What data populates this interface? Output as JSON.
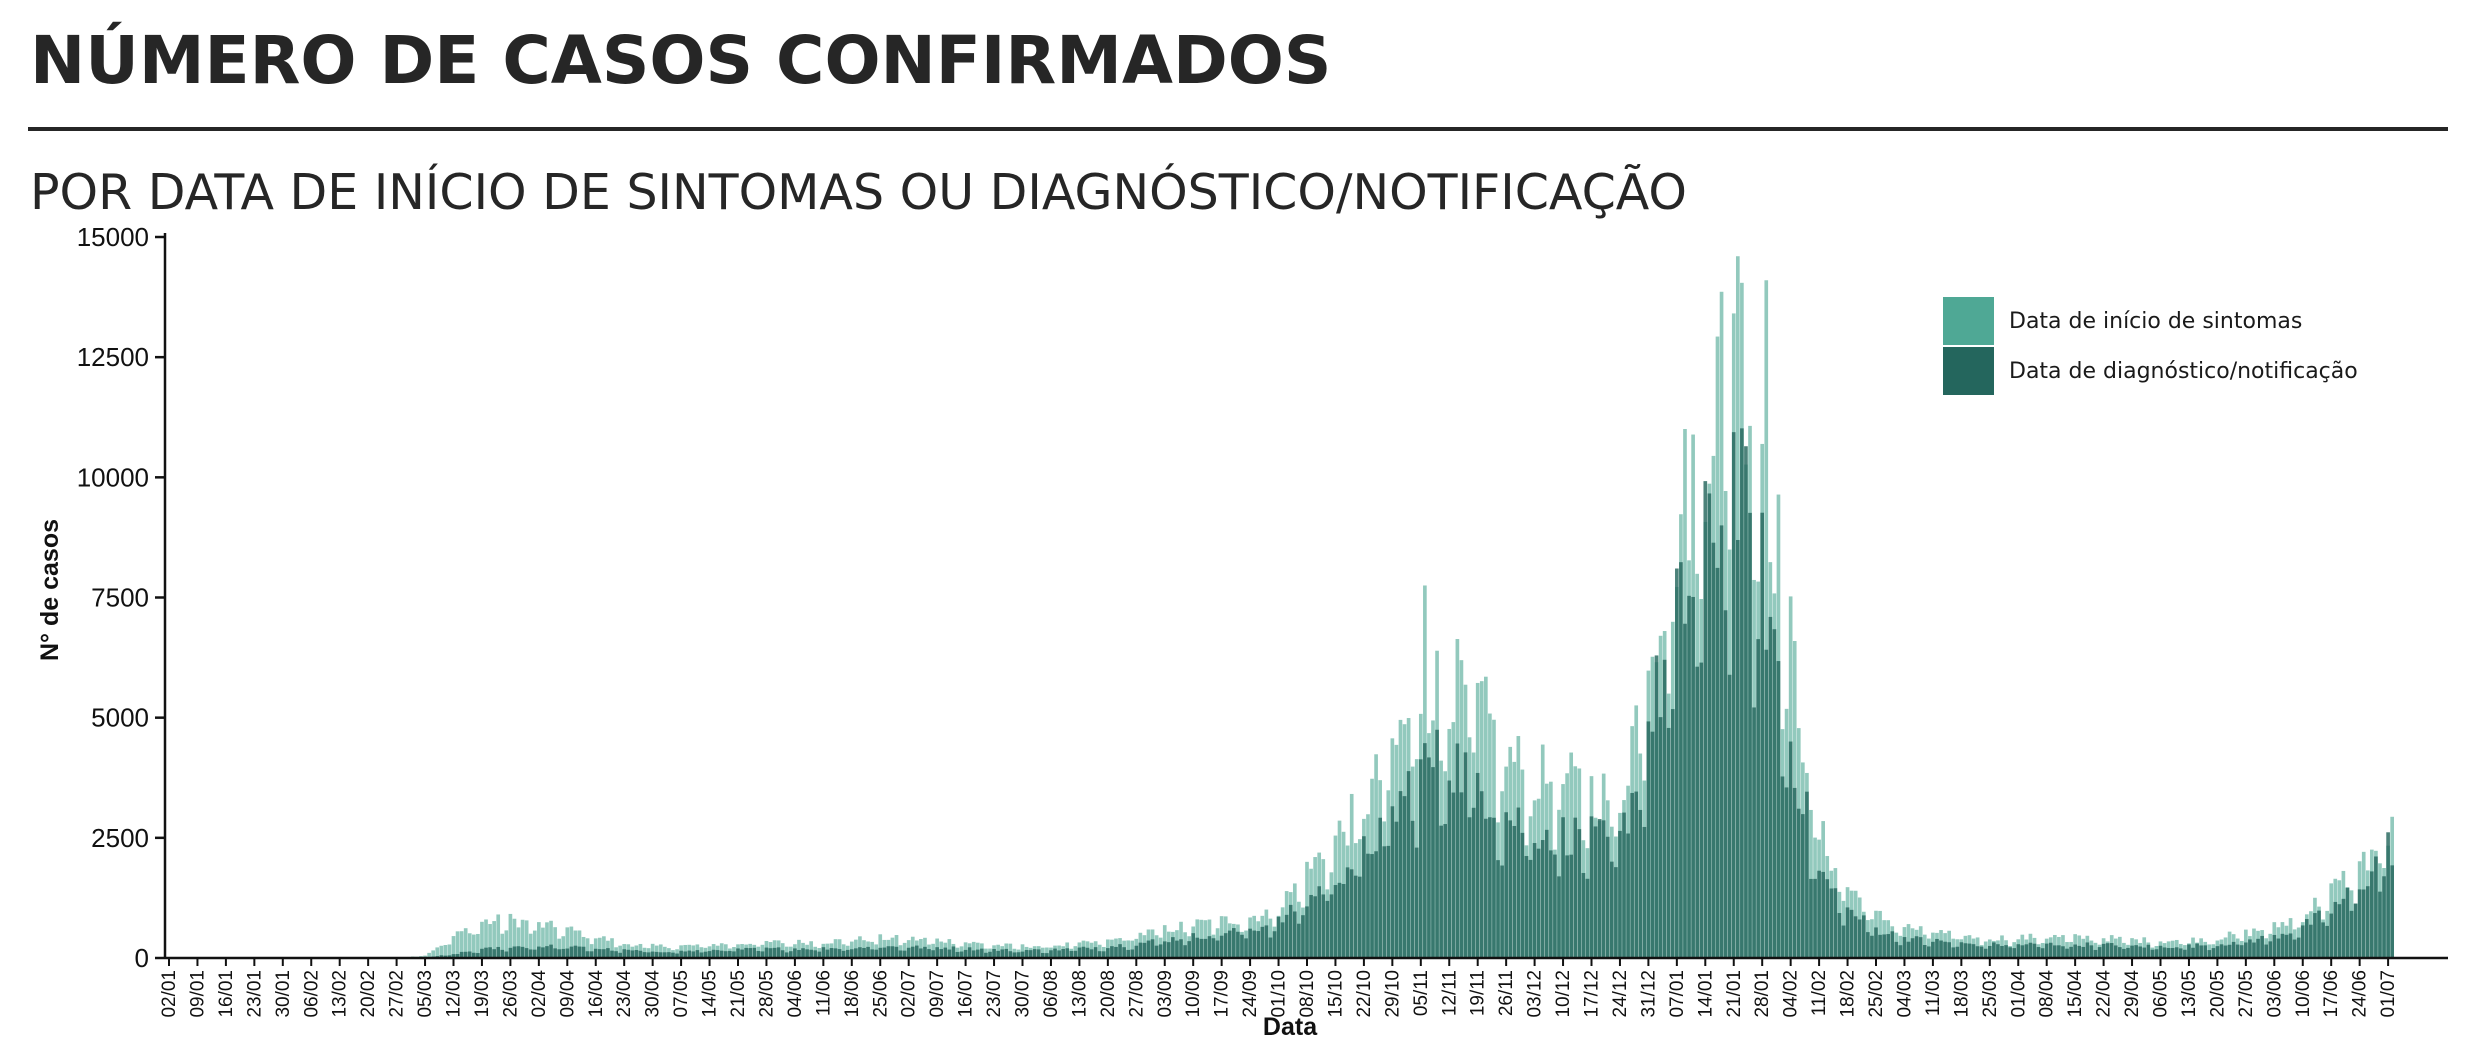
{
  "header": {
    "title": "NÚMERO DE CASOS CONFIRMADOS",
    "subtitle": "POR DATA DE INÍCIO DE SINTOMAS OU DIAGNÓSTICO/NOTIFICAÇÃO"
  },
  "colors": {
    "symptoms": "#4fa895",
    "diagnosis": "#24665d",
    "axis": "#111111"
  },
  "chart_data": {
    "type": "bar",
    "xlabel": "Data",
    "ylabel": "N° de casos",
    "ylim": [
      0,
      15000
    ],
    "yticks": [
      0,
      2500,
      5000,
      7500,
      10000,
      12500,
      15000
    ],
    "x_tick_labels": [
      "02/01",
      "09/01",
      "16/01",
      "23/01",
      "30/01",
      "06/02",
      "13/02",
      "20/02",
      "27/02",
      "05/03",
      "12/03",
      "19/03",
      "26/03",
      "02/04",
      "09/04",
      "16/04",
      "23/04",
      "30/04",
      "07/05",
      "14/05",
      "21/05",
      "28/05",
      "04/06",
      "11/06",
      "18/06",
      "25/06",
      "02/07",
      "09/07",
      "16/07",
      "23/07",
      "30/07",
      "06/08",
      "13/08",
      "20/08",
      "27/08",
      "03/09",
      "10/09",
      "17/09",
      "24/09",
      "01/10",
      "08/10",
      "15/10",
      "22/10",
      "29/10",
      "05/11",
      "12/11",
      "19/11",
      "26/11",
      "03/12",
      "10/12",
      "17/12",
      "24/12",
      "31/12",
      "07/01",
      "14/01",
      "21/01",
      "28/01",
      "04/02",
      "11/02",
      "18/02",
      "25/02",
      "04/03",
      "11/03",
      "18/03",
      "25/03",
      "01/04",
      "08/04",
      "15/04",
      "22/04",
      "29/04",
      "06/05",
      "13/05",
      "20/05",
      "27/05",
      "03/06",
      "10/06",
      "17/06",
      "24/06",
      "01/07"
    ],
    "legend": {
      "position": "top-right",
      "entries": [
        "Data de início de sintomas",
        "Data de diagnóstico/notificação"
      ]
    },
    "series": [
      {
        "name": "Data de início de sintomas",
        "weekly_level": [
          0,
          0,
          0,
          0,
          0,
          0,
          0,
          0,
          0,
          60,
          450,
          750,
          800,
          700,
          600,
          450,
          300,
          250,
          250,
          280,
          300,
          330,
          330,
          340,
          380,
          420,
          400,
          380,
          330,
          270,
          250,
          260,
          300,
          350,
          480,
          600,
          700,
          780,
          850,
          1050,
          1800,
          2500,
          3200,
          4300,
          5500,
          5800,
          5300,
          4200,
          3800,
          3700,
          3500,
          3300,
          6500,
          9000,
          11000,
          13500,
          11000,
          6500,
          2600,
          1500,
          900,
          650,
          550,
          450,
          420,
          420,
          450,
          430,
          420,
          380,
          360,
          370,
          430,
          520,
          650,
          900,
          1400,
          1900,
          2600
        ],
        "spikes": [
          {
            "x": "05/11",
            "value": 7750
          },
          {
            "x": "21/01",
            "value": 14600
          },
          {
            "x": "28/01",
            "value": 14100
          }
        ]
      },
      {
        "name": "Data de diagnóstico/notificação",
        "weekly_level": [
          0,
          0,
          0,
          0,
          0,
          0,
          0,
          0,
          0,
          10,
          80,
          180,
          230,
          250,
          230,
          200,
          160,
          140,
          140,
          160,
          180,
          190,
          200,
          200,
          220,
          240,
          230,
          220,
          200,
          170,
          160,
          170,
          200,
          240,
          300,
          380,
          450,
          520,
          600,
          750,
          1200,
          1700,
          2200,
          3000,
          4000,
          4200,
          3700,
          3000,
          2700,
          2600,
          2500,
          2400,
          4800,
          7000,
          8500,
          10000,
          8000,
          4500,
          1800,
          1000,
          600,
          420,
          360,
          300,
          280,
          280,
          290,
          280,
          280,
          250,
          240,
          250,
          290,
          350,
          450,
          650,
          1000,
          1500,
          2300
        ]
      }
    ]
  }
}
